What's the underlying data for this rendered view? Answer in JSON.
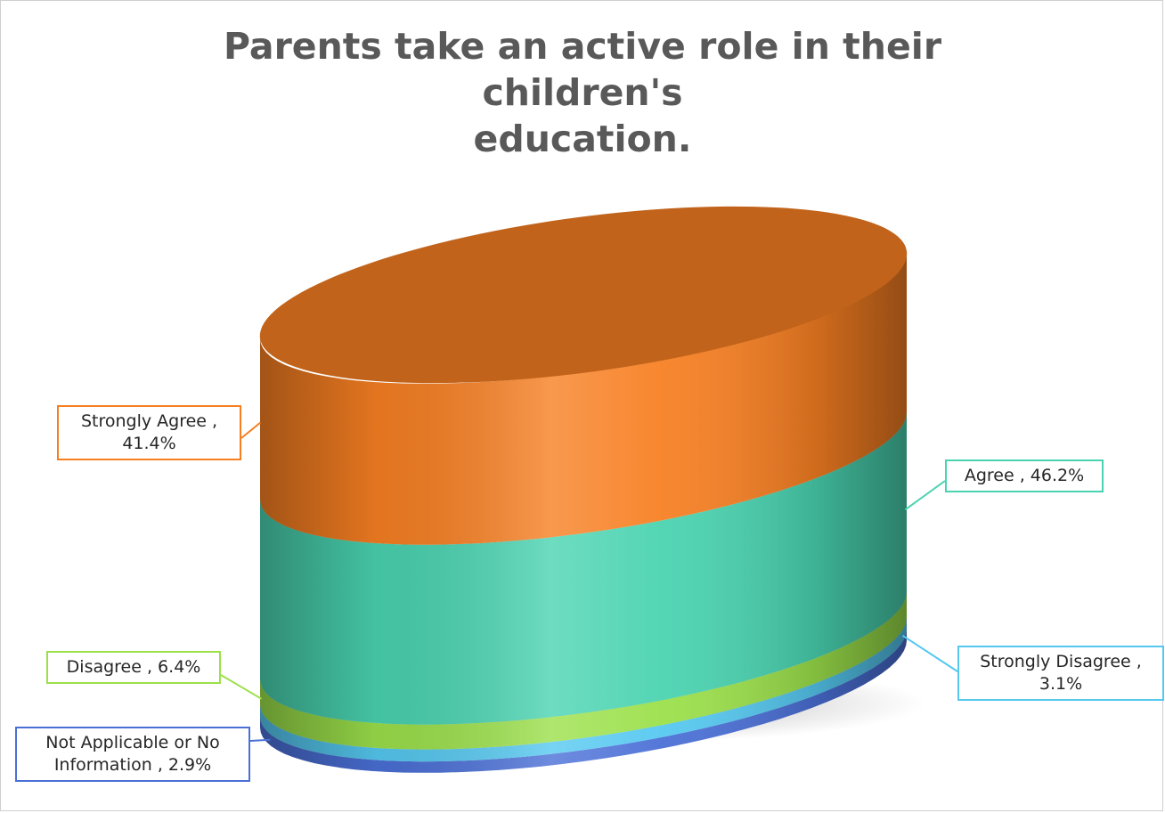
{
  "chart_data": {
    "type": "pie",
    "title_lines": [
      "Parents take an active role in their children's",
      "education."
    ],
    "series": [
      {
        "name": "Not Applicable or No Information",
        "value": 2.9,
        "color": "#4a6fd6",
        "label_lines": [
          "Not Applicable or No",
          "Information , 2.9%"
        ]
      },
      {
        "name": "Strongly Disagree",
        "value": 3.1,
        "color": "#55c8f0",
        "label_lines": [
          "Strongly Disagree ,",
          "3.1%"
        ]
      },
      {
        "name": "Disagree",
        "value": 6.4,
        "color": "#9be04a",
        "label_lines": [
          "Disagree , 6.4%"
        ]
      },
      {
        "name": "Agree",
        "value": 46.2,
        "color": "#49d3b0",
        "label_lines": [
          "Agree , 46.2%"
        ]
      },
      {
        "name": "Strongly Agree",
        "value": 41.4,
        "color": "#f77f22",
        "label_lines": [
          "Strongly Agree ,",
          "41.4%"
        ]
      }
    ],
    "legend": "none",
    "style": "3d stacked cylinder"
  }
}
